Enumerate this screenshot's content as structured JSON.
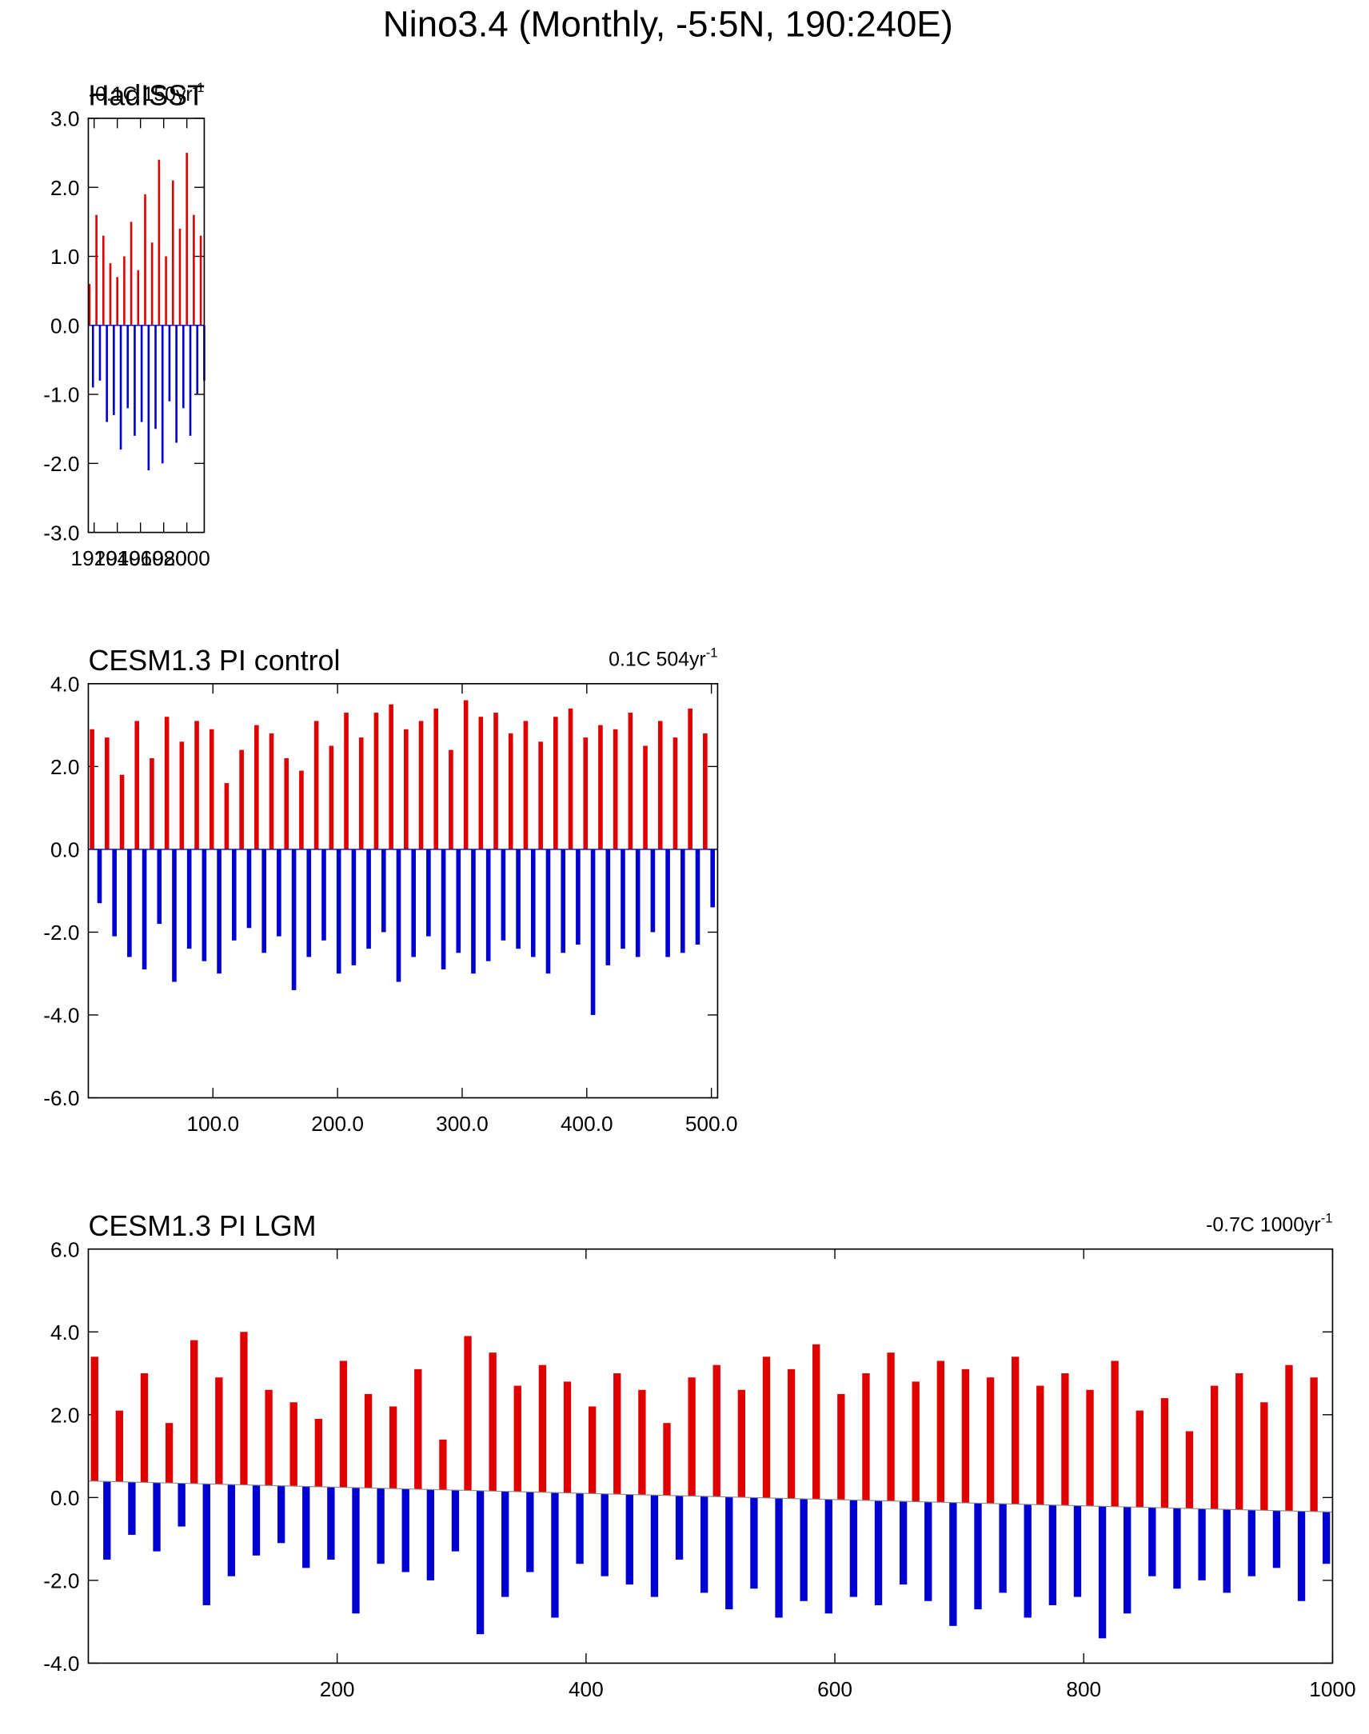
{
  "title": "Nino3.4 (Monthly, -5:5N, 190:240E)",
  "chart_data": [
    {
      "type": "bar",
      "title": "HadISST",
      "annotation": "-0.1C 150yr",
      "annotation_superscript": "-1",
      "x": [
        1916,
        1919,
        1922,
        1925,
        1928,
        1931,
        1934,
        1937,
        1940,
        1943,
        1946,
        1949,
        1952,
        1955,
        1958,
        1961,
        1964,
        1967,
        1970,
        1973,
        1976,
        1979,
        1982,
        1985,
        1988,
        1991,
        1994,
        1997,
        2000,
        2003,
        2006,
        2009,
        2012,
        2015
      ],
      "values": [
        0.6,
        -0.9,
        1.6,
        -0.8,
        1.3,
        -1.4,
        0.9,
        -1.3,
        0.7,
        -1.8,
        1.0,
        -1.2,
        1.5,
        -1.6,
        0.8,
        -1.4,
        1.9,
        -2.1,
        1.2,
        -1.5,
        2.4,
        -2.0,
        1.0,
        -1.1,
        2.1,
        -1.7,
        1.4,
        -1.2,
        2.5,
        -1.6,
        1.6,
        -1.0,
        1.3,
        -0.8
      ],
      "positive_color": "#e00000",
      "negative_color": "#0000d0",
      "xlim": [
        1915,
        2015
      ],
      "xticks": [
        1920,
        1940,
        1960,
        1980,
        2000
      ],
      "ylim": [
        -3,
        3
      ],
      "yticks": [
        {
          "value": -3,
          "label": "-3.0"
        },
        {
          "value": -2,
          "label": "-2.0"
        },
        {
          "value": -1,
          "label": "-1.0"
        },
        {
          "value": 0,
          "label": "0.0"
        },
        {
          "value": 1,
          "label": "1.0"
        },
        {
          "value": 2,
          "label": "2.0"
        },
        {
          "value": 3,
          "label": "3.0"
        }
      ]
    },
    {
      "type": "bar",
      "title": "CESM1.3 PI control",
      "annotation": "0.1C 504yr",
      "annotation_superscript": "-1",
      "x": [
        3,
        9,
        15,
        21,
        27,
        33,
        39,
        45,
        51,
        57,
        63,
        69,
        75,
        81,
        87,
        93,
        99,
        105,
        111,
        117,
        123,
        129,
        135,
        141,
        147,
        153,
        159,
        165,
        171,
        177,
        183,
        189,
        195,
        201,
        207,
        213,
        219,
        225,
        231,
        237,
        243,
        249,
        255,
        261,
        267,
        273,
        279,
        285,
        291,
        297,
        303,
        309,
        315,
        321,
        327,
        333,
        339,
        345,
        351,
        357,
        363,
        369,
        375,
        381,
        387,
        393,
        399,
        405,
        411,
        417,
        423,
        429,
        435,
        441,
        447,
        453,
        459,
        465,
        471,
        477,
        483,
        489,
        495,
        501
      ],
      "values": [
        2.9,
        -1.3,
        2.7,
        -2.1,
        1.8,
        -2.6,
        3.1,
        -2.9,
        2.2,
        -1.8,
        3.2,
        -3.2,
        2.6,
        -2.4,
        3.1,
        -2.7,
        2.9,
        -3.0,
        1.6,
        -2.2,
        2.4,
        -1.9,
        3.0,
        -2.5,
        2.8,
        -2.1,
        2.2,
        -3.4,
        1.9,
        -2.6,
        3.1,
        -2.2,
        2.5,
        -3.0,
        3.3,
        -2.8,
        2.7,
        -2.4,
        3.3,
        -2.0,
        3.5,
        -3.2,
        2.9,
        -2.6,
        3.1,
        -2.1,
        3.4,
        -2.9,
        2.4,
        -2.5,
        3.6,
        -3.0,
        3.2,
        -2.7,
        3.3,
        -2.2,
        2.8,
        -2.4,
        3.1,
        -2.6,
        2.6,
        -3.0,
        3.2,
        -2.5,
        3.4,
        -2.3,
        2.7,
        -4.0,
        3.0,
        -2.8,
        2.9,
        -2.4,
        3.3,
        -2.6,
        2.5,
        -2.0,
        3.1,
        -2.6,
        2.7,
        -2.5,
        3.4,
        -2.3,
        2.8,
        -1.4
      ],
      "positive_color": "#e00000",
      "negative_color": "#0000d0",
      "xlim": [
        0,
        505
      ],
      "xticks": [
        {
          "value": 100,
          "label": "100.0"
        },
        {
          "value": 200,
          "label": "200.0"
        },
        {
          "value": 300,
          "label": "300.0"
        },
        {
          "value": 400,
          "label": "400.0"
        },
        {
          "value": 500,
          "label": "500.0"
        }
      ],
      "ylim": [
        -6,
        4
      ],
      "yticks": [
        {
          "value": -6,
          "label": "-6.0"
        },
        {
          "value": -4,
          "label": "-4.0"
        },
        {
          "value": -2,
          "label": "-2.0"
        },
        {
          "value": 0,
          "label": "0.0"
        },
        {
          "value": 2,
          "label": "2.0"
        },
        {
          "value": 4,
          "label": "4.0"
        }
      ]
    },
    {
      "type": "bar",
      "title": "CESM1.3 PI LGM",
      "annotation": "-0.7C 1000yr",
      "annotation_superscript": "-1",
      "x": [
        5,
        15,
        25,
        35,
        45,
        55,
        65,
        75,
        85,
        95,
        105,
        115,
        125,
        135,
        145,
        155,
        165,
        175,
        185,
        195,
        205,
        215,
        225,
        235,
        245,
        255,
        265,
        275,
        285,
        295,
        305,
        315,
        325,
        335,
        345,
        355,
        365,
        375,
        385,
        395,
        405,
        415,
        425,
        435,
        445,
        455,
        465,
        475,
        485,
        495,
        505,
        515,
        525,
        535,
        545,
        555,
        565,
        575,
        585,
        595,
        605,
        615,
        625,
        635,
        645,
        655,
        665,
        675,
        685,
        695,
        705,
        715,
        725,
        735,
        745,
        755,
        765,
        775,
        785,
        795,
        805,
        815,
        825,
        835,
        845,
        855,
        865,
        875,
        885,
        895,
        905,
        915,
        925,
        935,
        945,
        955,
        965,
        975,
        985,
        995
      ],
      "values": [
        3.4,
        -1.5,
        2.1,
        -0.9,
        3.0,
        -1.3,
        1.8,
        -0.7,
        3.8,
        -2.6,
        2.9,
        -1.9,
        4.0,
        -1.4,
        2.6,
        -1.1,
        2.3,
        -1.7,
        1.9,
        -1.5,
        3.3,
        -2.8,
        2.5,
        -1.6,
        2.2,
        -1.8,
        3.1,
        -2.0,
        1.4,
        -1.3,
        3.9,
        -3.3,
        3.5,
        -2.4,
        2.7,
        -1.8,
        3.2,
        -2.9,
        2.8,
        -1.6,
        2.2,
        -1.9,
        3.0,
        -2.1,
        2.6,
        -2.4,
        1.8,
        -1.5,
        2.9,
        -2.3,
        3.2,
        -2.7,
        2.6,
        -2.2,
        3.4,
        -2.9,
        3.1,
        -2.5,
        3.7,
        -2.8,
        2.5,
        -2.4,
        3.0,
        -2.6,
        3.5,
        -2.1,
        2.8,
        -2.5,
        3.3,
        -3.1,
        3.1,
        -2.7,
        2.9,
        -2.3,
        3.4,
        -2.9,
        2.7,
        -2.6,
        3.0,
        -2.4,
        2.6,
        -3.4,
        3.3,
        -2.8,
        2.1,
        -1.9,
        2.4,
        -2.2,
        1.6,
        -2.0,
        2.7,
        -2.3,
        3.0,
        -1.9,
        2.3,
        -1.7,
        3.2,
        -2.5,
        2.9,
        -1.6
      ],
      "baseline": [
        0.4,
        -0.35
      ],
      "positive_color": "#e00000",
      "negative_color": "#0000d0",
      "xlim": [
        0,
        1000
      ],
      "xticks": [
        200,
        400,
        600,
        800,
        1000
      ],
      "ylim": [
        -4,
        6
      ],
      "yticks": [
        {
          "value": -4,
          "label": "-4.0"
        },
        {
          "value": -2,
          "label": "-2.0"
        },
        {
          "value": 0,
          "label": "0.0"
        },
        {
          "value": 2,
          "label": "2.0"
        },
        {
          "value": 4,
          "label": "4.0"
        },
        {
          "value": 6,
          "label": "6.0"
        }
      ]
    }
  ]
}
